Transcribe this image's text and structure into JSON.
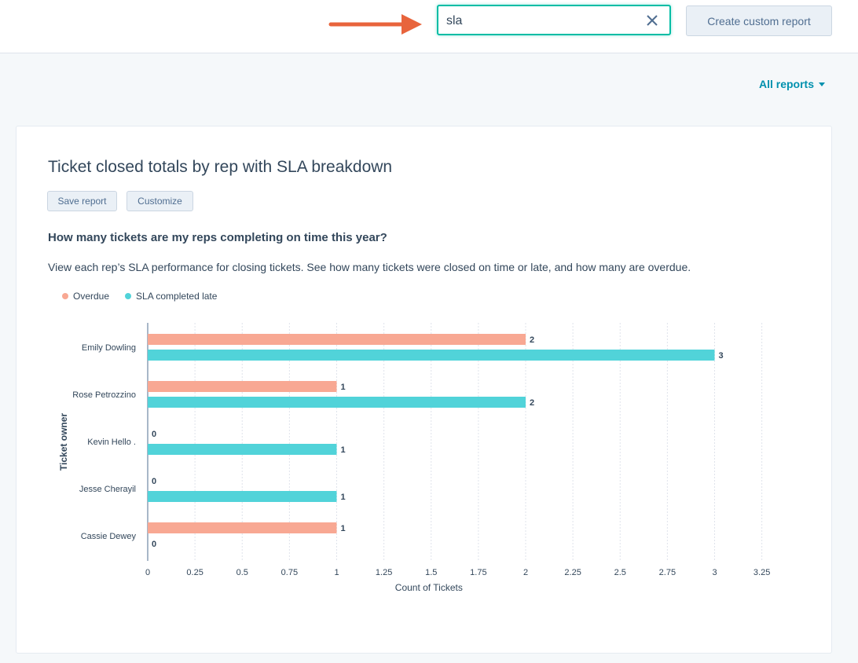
{
  "header": {
    "search_value": "sla",
    "create_button_label": "Create custom report"
  },
  "toolbar": {
    "all_reports_label": "All reports"
  },
  "report": {
    "title": "Ticket closed totals by rep with SLA breakdown",
    "save_label": "Save report",
    "customize_label": "Customize",
    "question": "How many tickets are my reps completing on time this year?",
    "description": "View each rep’s SLA performance for closing tickets. See how many tickets were closed on time or late, and how many are overdue."
  },
  "colors": {
    "overdue": "#f8a893",
    "late": "#51d3d9",
    "accent": "#00bda5",
    "link": "#0091ae",
    "arrow": "#e8643c"
  },
  "chart_data": {
    "type": "bar",
    "orientation": "horizontal",
    "categories": [
      "Emily Dowling",
      "Rose Petrozzino",
      "Kevin Hello .",
      "Jesse Cherayil",
      "Cassie Dewey"
    ],
    "series": [
      {
        "name": "Overdue",
        "values": [
          2,
          1,
          0,
          0,
          1
        ]
      },
      {
        "name": "SLA completed late",
        "values": [
          3,
          2,
          1,
          1,
          0
        ]
      }
    ],
    "xlabel": "Count of Tickets",
    "ylabel": "Ticket owner",
    "xlim": [
      0,
      3.25
    ],
    "xticks": [
      "0",
      "0.25",
      "0.5",
      "0.75",
      "1",
      "1.25",
      "1.5",
      "1.75",
      "2",
      "2.25",
      "2.5",
      "2.75",
      "3",
      "3.25"
    ],
    "grid": true,
    "legend": "top-left",
    "data_labels": true
  }
}
